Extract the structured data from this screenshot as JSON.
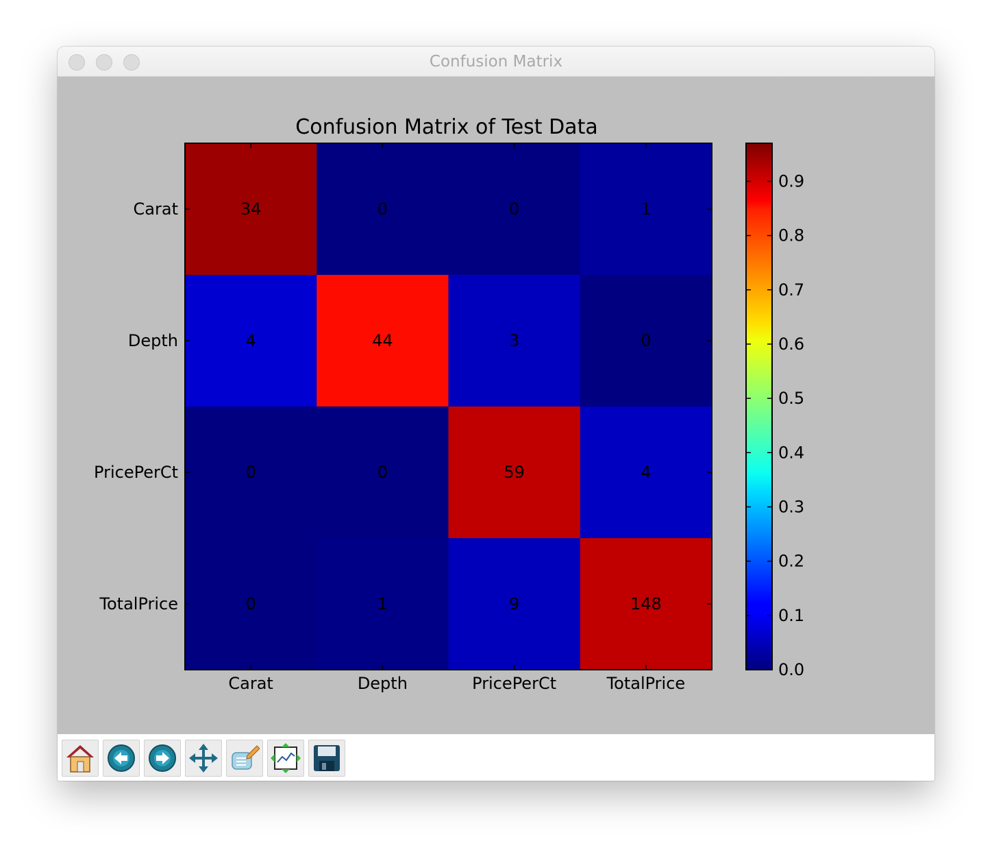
{
  "window": {
    "title": "Confusion Matrix"
  },
  "chart_data": {
    "type": "heatmap",
    "title": "Confusion Matrix of Test Data",
    "x_categories": [
      "Carat",
      "Depth",
      "PricePerCt",
      "TotalPrice"
    ],
    "y_categories": [
      "Carat",
      "Depth",
      "PricePerCt",
      "TotalPrice"
    ],
    "values": [
      [
        34,
        0,
        0,
        1
      ],
      [
        4,
        44,
        3,
        0
      ],
      [
        0,
        0,
        59,
        4
      ],
      [
        0,
        1,
        9,
        148
      ]
    ],
    "colormap": "jet",
    "colorbar": {
      "range": [
        0.0,
        0.97
      ],
      "ticks": [
        "0.0",
        "0.1",
        "0.2",
        "0.3",
        "0.4",
        "0.5",
        "0.6",
        "0.7",
        "0.8",
        "0.9"
      ]
    }
  },
  "toolbar": {
    "buttons": [
      {
        "name": "home-button",
        "icon": "home-icon"
      },
      {
        "name": "back-button",
        "icon": "back-arrow-icon"
      },
      {
        "name": "forward-button",
        "icon": "forward-arrow-icon"
      },
      {
        "name": "pan-button",
        "icon": "move-icon"
      },
      {
        "name": "zoom-button",
        "icon": "zoom-rect-icon"
      },
      {
        "name": "subplots-button",
        "icon": "configure-subplots-icon"
      },
      {
        "name": "save-button",
        "icon": "save-icon"
      }
    ]
  }
}
